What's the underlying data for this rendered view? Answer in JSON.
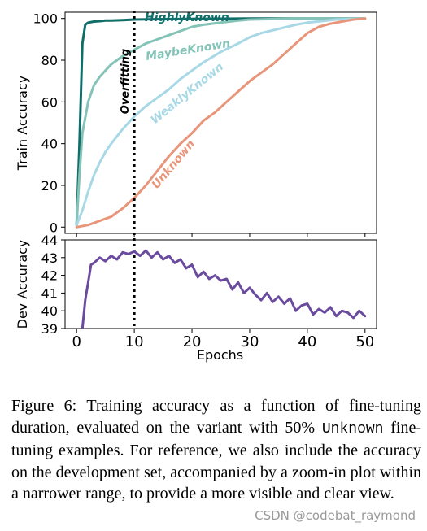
{
  "chart_data": [
    {
      "type": "line",
      "id": "train",
      "ylabel": "Train Accuracy",
      "xlim": [
        -2,
        52
      ],
      "ylim": [
        -3,
        103
      ],
      "xticks": [
        0,
        10,
        20,
        30,
        40,
        50
      ],
      "yticks": [
        0,
        20,
        40,
        60,
        80,
        100
      ],
      "ytick_labels": [
        "0",
        "20",
        "40",
        "60",
        "80",
        "100"
      ],
      "annotation": {
        "x": 10,
        "label": "Overfitting",
        "style": "dotted vertical line"
      },
      "series": [
        {
          "name": "HighlyKnown",
          "color": "#0f6e6a",
          "x": [
            0,
            0.5,
            1,
            1.5,
            2,
            3,
            4,
            5,
            6,
            8,
            10,
            12,
            15,
            20,
            25,
            30,
            40,
            50
          ],
          "y": [
            1,
            40,
            88,
            97,
            98,
            98.5,
            98.7,
            99,
            99,
            99.2,
            99.5,
            99.6,
            99.7,
            99.8,
            99.9,
            100,
            100,
            100
          ]
        },
        {
          "name": "MaybeKnown",
          "color": "#84c3b7",
          "x": [
            0,
            0.5,
            1,
            2,
            3,
            4,
            5,
            6,
            7,
            8,
            10,
            12,
            14,
            16,
            18,
            20,
            22,
            25,
            28,
            30,
            35,
            40,
            45,
            50
          ],
          "y": [
            1,
            25,
            45,
            60,
            68,
            72,
            75,
            78,
            80,
            82,
            85,
            88,
            90,
            92,
            94,
            96,
            97,
            98,
            99,
            99.5,
            99.8,
            100,
            100,
            100
          ]
        },
        {
          "name": "WeaklyKnown",
          "color": "#a8d8e6",
          "x": [
            0,
            1,
            2,
            3,
            4,
            5,
            6,
            8,
            10,
            12,
            14,
            16,
            18,
            20,
            22,
            25,
            28,
            30,
            32,
            35,
            38,
            40,
            45,
            50
          ],
          "y": [
            1,
            8,
            17,
            25,
            31,
            36,
            40,
            47,
            53,
            58,
            62,
            66,
            71,
            75,
            79,
            84,
            88,
            91,
            93,
            95,
            97,
            98,
            99.5,
            100
          ]
        },
        {
          "name": "Unknown",
          "color": "#e8957a",
          "x": [
            0,
            2,
            4,
            6,
            8,
            10,
            12,
            14,
            16,
            18,
            20,
            22,
            24,
            26,
            28,
            30,
            32,
            34,
            36,
            38,
            40,
            42,
            44,
            46,
            48,
            50
          ],
          "y": [
            0,
            1,
            3,
            5,
            9,
            14,
            20,
            27,
            34,
            40,
            45,
            51,
            55,
            60,
            65,
            70,
            74,
            78,
            83,
            88,
            93,
            96,
            97.5,
            98.5,
            99.5,
            100
          ]
        }
      ]
    },
    {
      "type": "line",
      "id": "dev",
      "ylabel": "Dev Accuracy",
      "xlabel": "Epochs",
      "xlim": [
        -2,
        52
      ],
      "ylim": [
        39,
        44
      ],
      "xticks": [
        0,
        10,
        20,
        30,
        40,
        50
      ],
      "xtick_labels": [
        "0",
        "10",
        "20",
        "30",
        "40",
        "50"
      ],
      "yticks": [
        39,
        40,
        41,
        42,
        43,
        44
      ],
      "ytick_labels": [
        "39",
        "40",
        "41",
        "42",
        "43",
        "44"
      ],
      "series": [
        {
          "name": "",
          "color": "#6a4b9e",
          "x": [
            1,
            1.5,
            2,
            2.5,
            3,
            4,
            5,
            6,
            7,
            8,
            9,
            10,
            11,
            12,
            13,
            14,
            15,
            16,
            17,
            18,
            19,
            20,
            21,
            22,
            23,
            24,
            25,
            26,
            27,
            28,
            29,
            30,
            31,
            32,
            33,
            34,
            35,
            36,
            37,
            38,
            39,
            40,
            41,
            42,
            43,
            44,
            45,
            46,
            47,
            48,
            49,
            50
          ],
          "y": [
            39.0,
            40.6,
            41.6,
            42.6,
            42.7,
            43.0,
            42.8,
            43.1,
            42.9,
            43.3,
            43.2,
            43.35,
            43.1,
            43.4,
            43.0,
            43.3,
            42.9,
            43.1,
            42.7,
            42.9,
            42.4,
            42.6,
            41.9,
            42.2,
            41.8,
            42.0,
            41.7,
            41.8,
            41.2,
            41.6,
            41.0,
            41.3,
            40.9,
            40.6,
            41.0,
            40.5,
            40.8,
            40.4,
            40.7,
            40.0,
            40.3,
            40.4,
            39.8,
            40.1,
            39.9,
            40.2,
            39.7,
            40.0,
            39.9,
            39.6,
            40.0,
            39.7
          ]
        }
      ]
    }
  ],
  "caption": {
    "part1": "Figure 6: Training accuracy as a function of fine-tuning duration, evaluated on the variant with 50%",
    "code": "Unknown",
    "part2": "fine-tuning examples. For reference, we also include the accuracy on the development set, accompanied by a zoom-in plot within a narrower range, to provide a more visible and clear view."
  },
  "watermark": "CSDN @codebat_raymond"
}
